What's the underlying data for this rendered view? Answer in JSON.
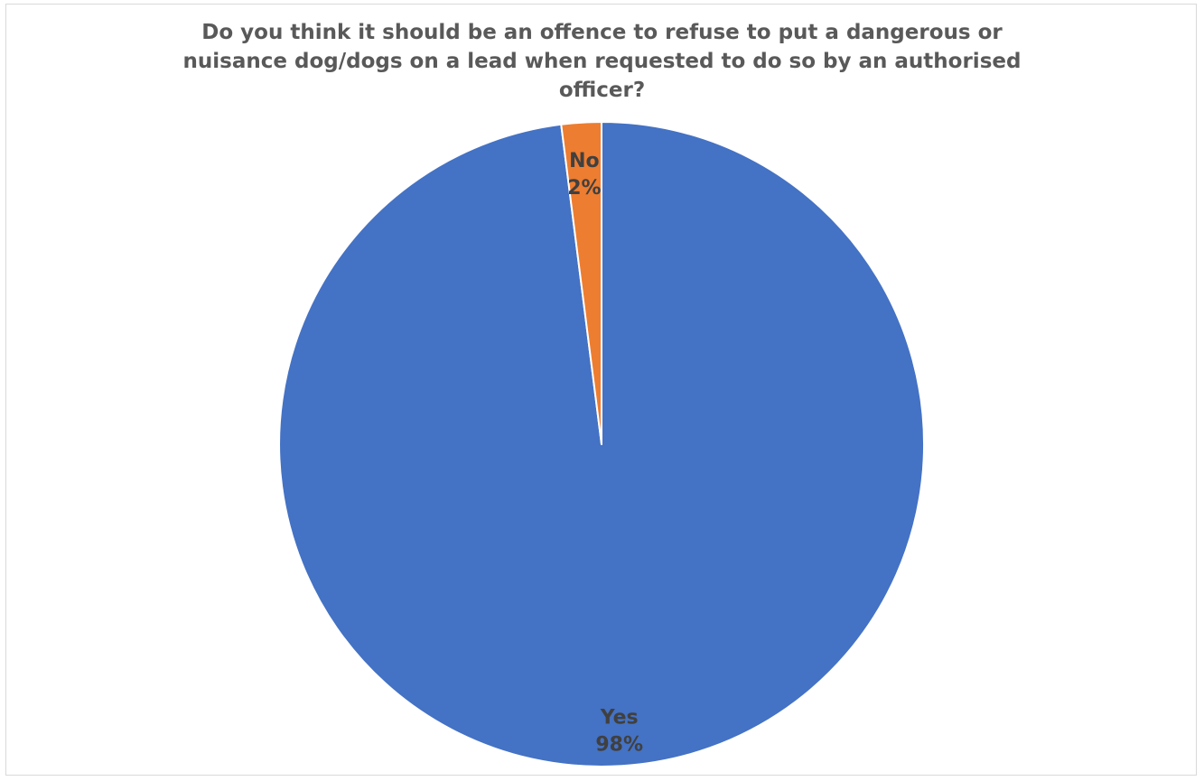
{
  "chart_data": {
    "type": "pie",
    "title_lines": [
      "Do you think it should be an offence to refuse to put a dangerous or",
      "nuisance dog/dogs on a lead when requested to do so by an authorised",
      "officer?"
    ],
    "categories": [
      "Yes",
      "No"
    ],
    "values": [
      98,
      2
    ],
    "labels": [
      {
        "name": "Yes",
        "percent": "98%"
      },
      {
        "name": "No",
        "percent": "2%"
      }
    ],
    "colors": [
      "#4472C4",
      "#ED7D31"
    ],
    "slice_border_color": "#ffffff",
    "label_color": "#404040",
    "legend": "none"
  }
}
